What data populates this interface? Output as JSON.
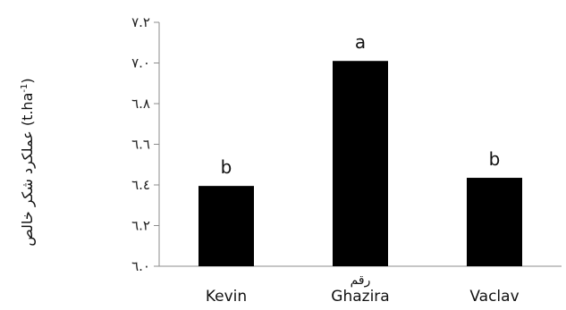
{
  "chart_data": {
    "type": "bar",
    "categories": [
      "Kevin",
      "Ghazira",
      "Vaclav"
    ],
    "values": [
      6.395,
      7.01,
      6.435
    ],
    "group_letters": [
      "b",
      "a",
      "b"
    ],
    "ylim": [
      6.0,
      7.2
    ],
    "yticks": [
      6.0,
      6.2,
      6.4,
      6.6,
      6.8,
      7.0,
      7.2
    ],
    "ytick_labels": [
      "٦.٠",
      "٦.٢",
      "٦.٤",
      "٦.٦",
      "٦.٨",
      "٧.٠",
      "٧.٢"
    ],
    "xlabel": "رقم",
    "ylabel_text": "عملکرد شکر خالص (t.ha",
    "ylabel_sup": "-1",
    "ylabel_close": ")",
    "grid": false,
    "bar_color": "#000000"
  }
}
